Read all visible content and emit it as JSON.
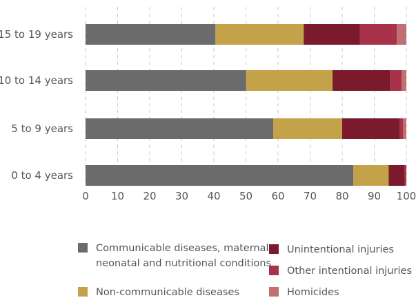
{
  "chart_data": {
    "type": "bar",
    "orientation": "horizontal",
    "stacked": true,
    "categories": [
      "15 to 19 years",
      "10 to 14 years",
      "5 to 9 years",
      "0 to 4 years"
    ],
    "series": [
      {
        "name": "Communicable diseases, maternal, neonatal and nutritional conditions",
        "color": "#6b6b6d",
        "values": [
          40.5,
          50,
          58.5,
          83.5
        ]
      },
      {
        "name": "Non-communicable diseases",
        "color": "#c4a24a",
        "values": [
          27.5,
          27,
          21.5,
          11
        ]
      },
      {
        "name": "Unintentional injuries",
        "color": "#7a1a2c",
        "values": [
          17.5,
          18,
          18,
          5
        ]
      },
      {
        "name": "Other intentional injuries",
        "color": "#a8324a",
        "values": [
          11.5,
          3.5,
          1,
          0.5
        ]
      },
      {
        "name": "Homicides",
        "color": "#c07070",
        "values": [
          3,
          1.5,
          1,
          0
        ]
      }
    ],
    "xlim": [
      0,
      100
    ],
    "xticks": [
      0,
      10,
      20,
      30,
      40,
      50,
      60,
      70,
      80,
      90,
      100
    ],
    "grid": "vertical dashed",
    "legend_position": "bottom"
  },
  "legend": {
    "items": [
      {
        "lines": [
          "Communicable diseases, maternal,",
          "neonatal and nutritional conditions"
        ],
        "color": "#6b6b6d"
      },
      {
        "lines": [
          "Non-communicable diseases"
        ],
        "color": "#c4a24a"
      },
      {
        "lines": [
          "Unintentional injuries"
        ],
        "color": "#7a1a2c"
      },
      {
        "lines": [
          "Other intentional injuries"
        ],
        "color": "#a8324a"
      },
      {
        "lines": [
          "Homicides"
        ],
        "color": "#c07070"
      }
    ]
  }
}
